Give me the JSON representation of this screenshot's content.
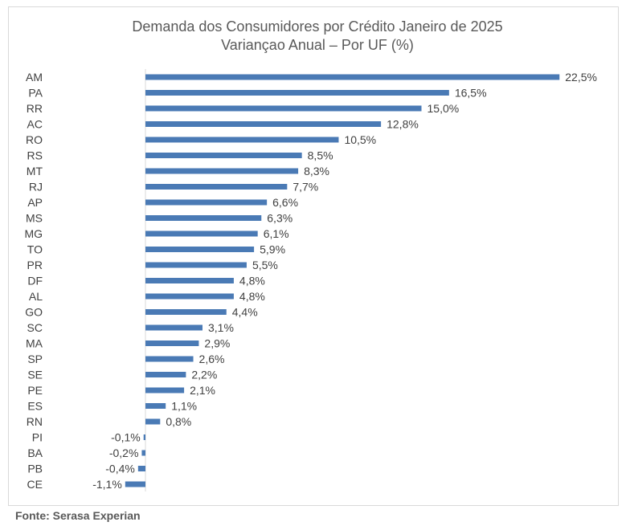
{
  "chart_data": {
    "type": "bar",
    "orientation": "horizontal",
    "title": "Demanda dos Consumidores por Crédito Janeiro de 2025",
    "subtitle": "Variançao Anual – Por UF (%)",
    "categories": [
      "AM",
      "PA",
      "RR",
      "AC",
      "RO",
      "RS",
      "MT",
      "RJ",
      "AP",
      "MS",
      "MG",
      "TO",
      "PR",
      "DF",
      "AL",
      "GO",
      "SC",
      "MA",
      "SP",
      "SE",
      "PE",
      "ES",
      "RN",
      "PI",
      "BA",
      "PB",
      "CE"
    ],
    "values": [
      22.5,
      16.5,
      15.0,
      12.8,
      10.5,
      8.5,
      8.3,
      7.7,
      6.6,
      6.3,
      6.1,
      5.9,
      5.5,
      4.8,
      4.8,
      4.4,
      3.1,
      2.9,
      2.6,
      2.2,
      2.1,
      1.1,
      0.8,
      -0.1,
      -0.2,
      -0.4,
      -1.1
    ],
    "labels": [
      "22,5%",
      "16,5%",
      "15,0%",
      "12,8%",
      "10,5%",
      "8,5%",
      "8,3%",
      "7,7%",
      "6,6%",
      "6,3%",
      "6,1%",
      "5,9%",
      "5,5%",
      "4,8%",
      "4,8%",
      "4,4%",
      "3,1%",
      "2,9%",
      "2,6%",
      "2,2%",
      "2,1%",
      "1,1%",
      "0,8%",
      "-0,1%",
      "-0,2%",
      "-0,4%",
      "-1,1%"
    ],
    "bar_color": "#4a7ab5",
    "grid": false
  },
  "source": "Fonte: Serasa Experian"
}
